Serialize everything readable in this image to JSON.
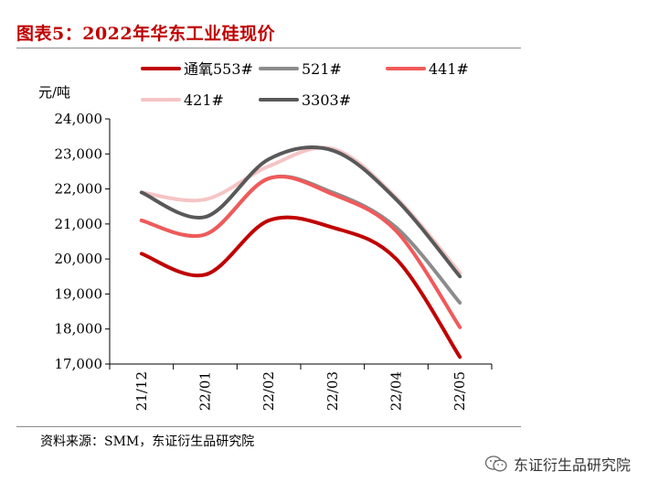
{
  "title": "图表5：2022年华东工业硅现价",
  "source": "资料来源：SMM，东证衍生品研究院",
  "watermark": "东证衍生品研究院",
  "chart_data": {
    "type": "line",
    "ylabel": "元/吨",
    "ylim": [
      17000,
      24000
    ],
    "yticks": [
      17000,
      18000,
      19000,
      20000,
      21000,
      22000,
      23000,
      24000
    ],
    "ytick_labels": [
      "17,000",
      "18,000",
      "19,000",
      "20,000",
      "21,000",
      "22,000",
      "23,000",
      "24,000"
    ],
    "categories": [
      "21/12",
      "22/01",
      "22/02",
      "22/03",
      "22/04",
      "22/05"
    ],
    "legend_position": "top",
    "series": [
      {
        "name": "通氧553#",
        "color": "#c00000",
        "values": [
          20150,
          19550,
          21100,
          20900,
          20000,
          17200
        ]
      },
      {
        "name": "521#",
        "color": "#8c8c8c",
        "values": [
          21100,
          20700,
          22300,
          21900,
          20900,
          18750
        ]
      },
      {
        "name": "441#",
        "color": "#f05a5a",
        "values": [
          21100,
          20700,
          22300,
          21850,
          20800,
          18050
        ]
      },
      {
        "name": "421#",
        "color": "#f6c4c4",
        "values": [
          21900,
          21700,
          22650,
          23150,
          21750,
          19600
        ]
      },
      {
        "name": "3303#",
        "color": "#595959",
        "values": [
          21900,
          21200,
          22850,
          23100,
          21700,
          19500
        ]
      }
    ]
  }
}
